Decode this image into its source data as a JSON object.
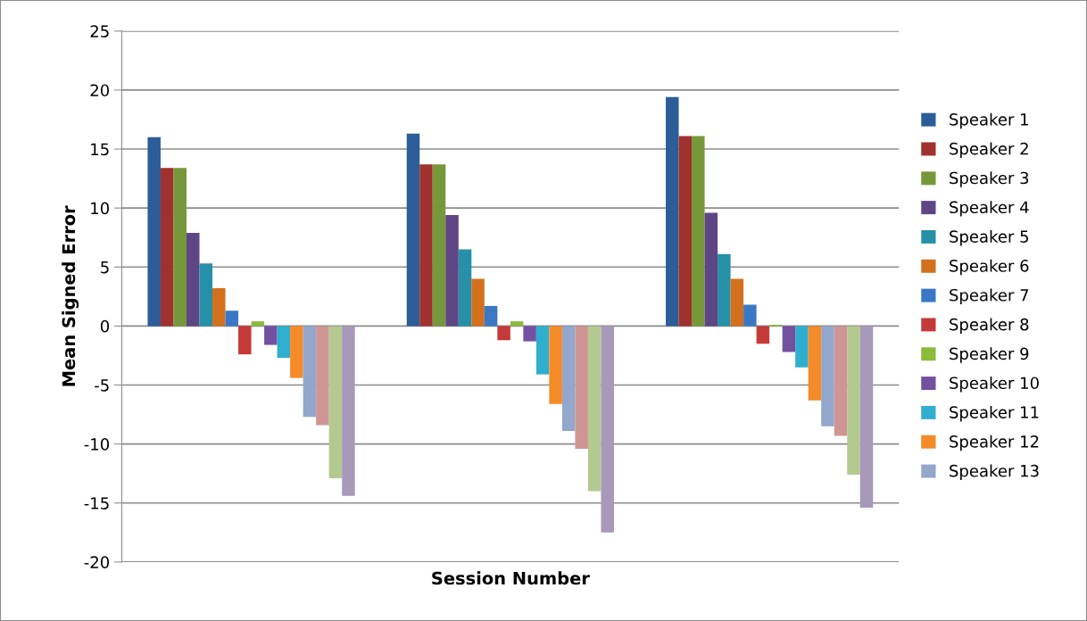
{
  "chart_data": {
    "type": "bar",
    "xlabel": "Session Number",
    "ylabel": "Mean Signed Error",
    "categories": [
      null,
      null,
      null
    ],
    "series": [
      {
        "name": "Speaker 1",
        "color": "#2c5d98",
        "values": [
          16.0,
          16.3,
          19.4
        ]
      },
      {
        "name": "Speaker 2",
        "color": "#a0312e",
        "values": [
          13.4,
          13.7,
          16.1
        ]
      },
      {
        "name": "Speaker 3",
        "color": "#76983a",
        "values": [
          13.4,
          13.7,
          16.1
        ]
      },
      {
        "name": "Speaker 4",
        "color": "#5e4584",
        "values": [
          7.9,
          9.4,
          9.6
        ]
      },
      {
        "name": "Speaker 5",
        "color": "#2690a8",
        "values": [
          5.3,
          6.5,
          6.1
        ]
      },
      {
        "name": "Speaker 6",
        "color": "#d3701e",
        "values": [
          3.2,
          4.0,
          4.0
        ]
      },
      {
        "name": "Speaker 7",
        "color": "#3a78c6",
        "values": [
          1.3,
          1.7,
          1.8
        ]
      },
      {
        "name": "Speaker 8",
        "color": "#c43a38",
        "values": [
          -2.4,
          -1.2,
          -1.5
        ]
      },
      {
        "name": "Speaker 9",
        "color": "#8cbb3a",
        "values": [
          0.4,
          0.4,
          0.1
        ]
      },
      {
        "name": "Speaker 10",
        "color": "#7450a0",
        "values": [
          -1.6,
          -1.3,
          -2.2
        ]
      },
      {
        "name": "Speaker 11",
        "color": "#30aed0",
        "values": [
          -2.7,
          -4.1,
          -3.5
        ]
      },
      {
        "name": "Speaker 12",
        "color": "#f58a28",
        "values": [
          -4.4,
          -6.6,
          -6.3
        ]
      },
      {
        "name": "Speaker 13",
        "color": "#93a7cc",
        "values": [
          -7.7,
          -8.9,
          -8.5
        ]
      },
      {
        "color": "#cf9594",
        "values": [
          -8.4,
          -10.4,
          -9.3
        ]
      },
      {
        "color": "#b3c990",
        "values": [
          -12.9,
          -14.0,
          -12.6
        ]
      },
      {
        "color": "#a899bb",
        "values": [
          -14.4,
          -17.5,
          -15.4
        ]
      }
    ],
    "ylim": [
      -20,
      25
    ],
    "yticks": [
      -20,
      -15,
      -10,
      -5,
      0,
      5,
      10,
      15,
      20,
      25
    ],
    "grid": "y",
    "legend": "right"
  }
}
